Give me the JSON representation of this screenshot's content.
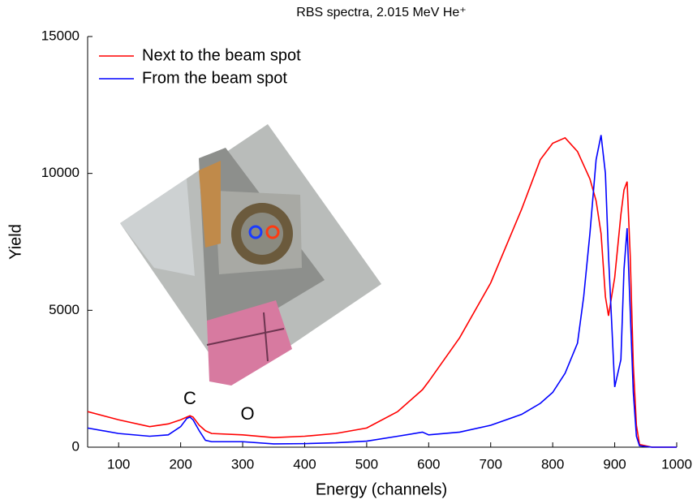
{
  "chart_data": {
    "type": "line",
    "title": "RBS spectra, 2.015 MeV He⁺",
    "x_label": "Energy (channels)",
    "y_label": "Yield",
    "x": [
      50,
      100,
      150,
      180,
      200,
      210,
      215,
      220,
      230,
      240,
      250,
      300,
      350,
      400,
      450,
      500,
      550,
      590,
      600,
      650,
      700,
      750,
      780,
      800,
      820,
      840,
      850,
      860,
      870,
      878,
      885,
      890,
      900,
      910,
      915,
      920,
      925,
      930,
      935,
      940,
      960,
      1000
    ],
    "series": [
      {
        "name": "Next to the beam spot",
        "color": "#ff0000",
        "values": [
          1300,
          1000,
          750,
          850,
          1000,
          1100,
          1150,
          1100,
          800,
          600,
          500,
          450,
          350,
          400,
          500,
          700,
          1300,
          2100,
          2400,
          4000,
          6000,
          8700,
          10500,
          11100,
          11300,
          10800,
          10300,
          9800,
          9000,
          7800,
          5500,
          4800,
          6200,
          8500,
          9400,
          9700,
          7000,
          3000,
          800,
          100,
          0,
          0
        ]
      },
      {
        "name": "From the beam spot",
        "color": "#0000ff",
        "values": [
          700,
          500,
          400,
          450,
          750,
          1050,
          1100,
          1000,
          600,
          250,
          200,
          200,
          120,
          130,
          160,
          220,
          400,
          550,
          450,
          550,
          800,
          1200,
          1600,
          2000,
          2700,
          3800,
          5500,
          7800,
          10500,
          11400,
          10000,
          7000,
          2200,
          3200,
          6500,
          8000,
          5000,
          2000,
          400,
          50,
          0,
          0
        ]
      }
    ],
    "annotations": [
      "C",
      "O"
    ],
    "xlim": [
      50,
      1000
    ],
    "xticks": [
      100,
      200,
      300,
      400,
      500,
      600,
      700,
      800,
      900,
      1000
    ],
    "ylim": [
      0,
      15000
    ],
    "yticks": [
      0,
      5000,
      10000,
      15000
    ],
    "legend": "upper left"
  }
}
